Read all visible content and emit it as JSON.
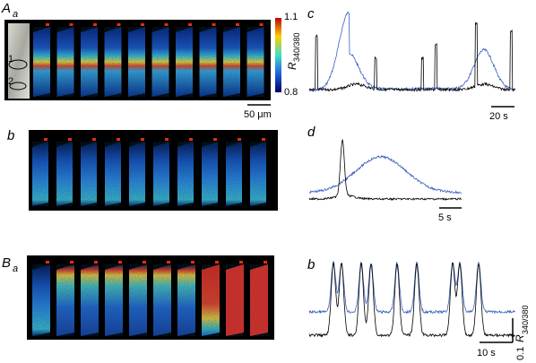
{
  "panels": {
    "Aa": {
      "label": "A",
      "sub": "a",
      "regions": [
        "1",
        "2"
      ],
      "colorbar": {
        "max": "1.1",
        "min": "0.8",
        "label": "R",
        "sub": "340/380"
      },
      "scale": "50 μm"
    },
    "Ab": {
      "label": "b"
    },
    "Ac": {
      "label": "c",
      "scale": "20 s"
    },
    "Ad": {
      "label": "d",
      "scale": "5 s"
    },
    "Ba": {
      "label": "B",
      "sub": "a"
    },
    "Bb": {
      "label": "b",
      "scale": "10 s",
      "yscale": "0.1",
      "yunit": "R",
      "ysub": "340/380"
    }
  }
}
